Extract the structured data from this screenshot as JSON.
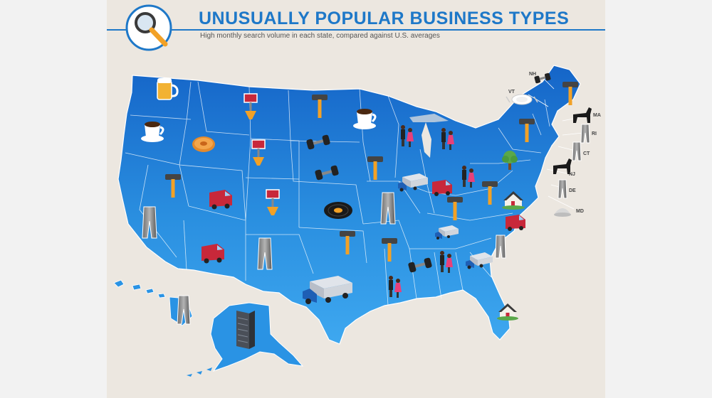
{
  "header": {
    "title": "UNUSUALLY POPULAR BUSINESS TYPES",
    "subtitle": "High monthly search volume in each state, compared against U.S. averages"
  },
  "state_labels": [
    "NH",
    "VT",
    "MA",
    "RI",
    "CT",
    "NJ",
    "DE",
    "MD"
  ],
  "colors": {
    "background": "#ece7e0",
    "map_blue": "#1f82d6",
    "map_light": "#3fa4ec",
    "accent": "#1e78c8",
    "van_red": "#c8283a",
    "hammer_orange": "#f2a126"
  },
  "icons": [
    {
      "name": "beer-mug-icon",
      "state": "WA"
    },
    {
      "name": "coffee-cup-icon",
      "state": "OR"
    },
    {
      "name": "donut-icon",
      "state": "ID"
    },
    {
      "name": "pizza-sign-icon",
      "state": "MT"
    },
    {
      "name": "pizza-sign-icon",
      "state": "WY"
    },
    {
      "name": "pizza-sign-icon",
      "state": "CO"
    },
    {
      "name": "hammer-icon",
      "state": "ND"
    },
    {
      "name": "coffee-cup-icon",
      "state": "MN"
    },
    {
      "name": "dumbbell-icon",
      "state": "SD"
    },
    {
      "name": "dumbbell-icon",
      "state": "NE"
    },
    {
      "name": "vinyl-record-icon",
      "state": "KS"
    },
    {
      "name": "hammer-icon",
      "state": "NV"
    },
    {
      "name": "delivery-van-icon",
      "state": "UT"
    },
    {
      "name": "delivery-van-icon",
      "state": "AZ"
    },
    {
      "name": "pants-icon",
      "state": "CA"
    },
    {
      "name": "pants-icon",
      "state": "NM"
    },
    {
      "name": "hammer-icon",
      "state": "OK"
    },
    {
      "name": "truck-icon",
      "state": "TX"
    },
    {
      "name": "hammer-icon",
      "state": "IA"
    },
    {
      "name": "pants-icon",
      "state": "MO"
    },
    {
      "name": "hammer-icon",
      "state": "AR"
    },
    {
      "name": "dancers-icon",
      "state": "LA"
    },
    {
      "name": "dancers-icon",
      "state": "WI"
    },
    {
      "name": "truck-icon",
      "state": "IL"
    },
    {
      "name": "dancers-icon",
      "state": "MI"
    },
    {
      "name": "delivery-van-icon",
      "state": "IN"
    },
    {
      "name": "dancers-icon",
      "state": "OH"
    },
    {
      "name": "hammer-icon",
      "state": "KY"
    },
    {
      "name": "truck-icon",
      "state": "TN"
    },
    {
      "name": "dumbbell-icon",
      "state": "MS"
    },
    {
      "name": "dancers-icon",
      "state": "AL"
    },
    {
      "name": "truck-icon",
      "state": "GA"
    },
    {
      "name": "pants-icon",
      "state": "SC"
    },
    {
      "name": "delivery-van-icon",
      "state": "NC"
    },
    {
      "name": "house-icon",
      "state": "VA"
    },
    {
      "name": "hammer-icon",
      "state": "WV"
    },
    {
      "name": "tree-icon",
      "state": "PA"
    },
    {
      "name": "hammer-icon",
      "state": "NY"
    },
    {
      "name": "hammer-icon",
      "state": "ME"
    },
    {
      "name": "dumbbell-icon",
      "state": "NH"
    },
    {
      "name": "plate-icon",
      "state": "VT"
    },
    {
      "name": "dog-icon",
      "state": "MA"
    },
    {
      "name": "pants-icon",
      "state": "RI"
    },
    {
      "name": "pants-icon",
      "state": "CT"
    },
    {
      "name": "dog-icon",
      "state": "NJ"
    },
    {
      "name": "pants-icon",
      "state": "DE"
    },
    {
      "name": "dome-icon",
      "state": "MD"
    },
    {
      "name": "house-icon",
      "state": "FL"
    },
    {
      "name": "skyscraper-icon",
      "state": "AK"
    },
    {
      "name": "pants-icon",
      "state": "HI"
    },
    {
      "name": "magnifier-icon",
      "state": "header"
    }
  ]
}
